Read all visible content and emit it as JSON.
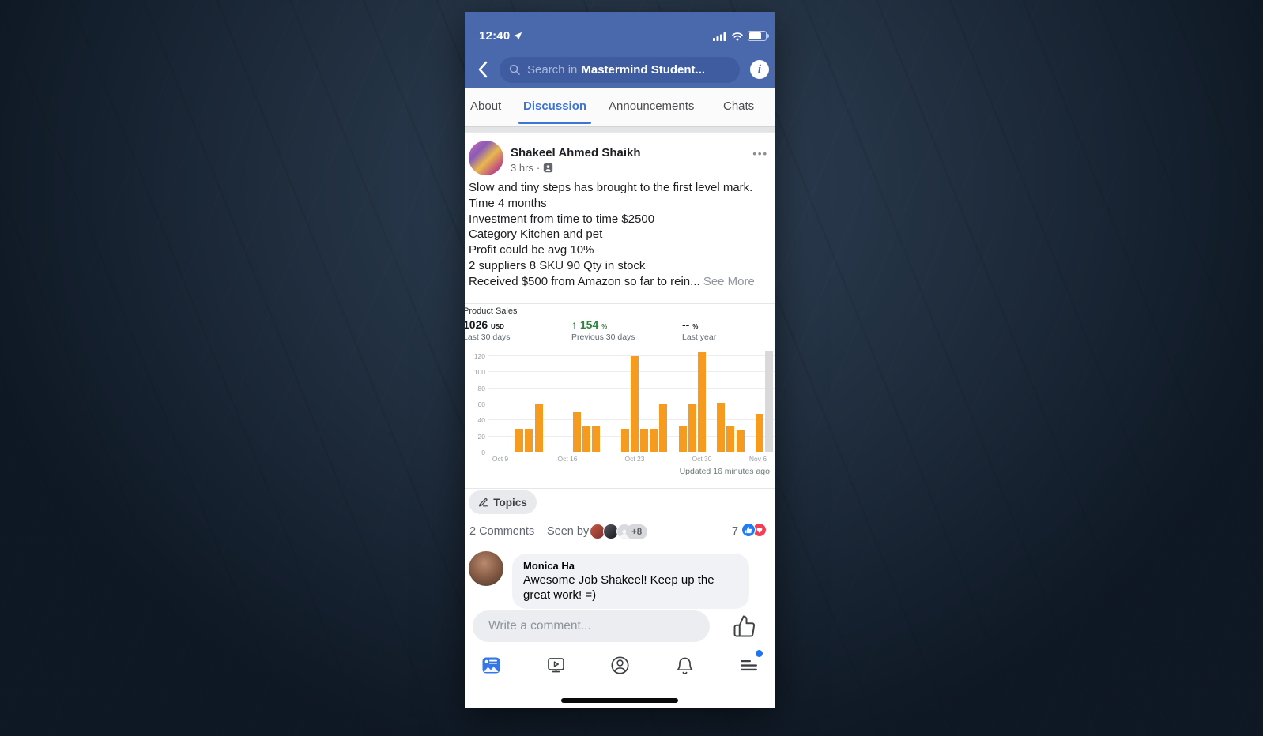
{
  "status_bar": {
    "time": "12:40"
  },
  "header": {
    "search_prefix": "Search in",
    "search_group": "Mastermind Student..."
  },
  "tabs": [
    {
      "label": "About"
    },
    {
      "label": "Discussion"
    },
    {
      "label": "Announcements"
    },
    {
      "label": "Chats"
    }
  ],
  "active_tab": "Discussion",
  "post": {
    "author": "Shakeel Ahmed Shaikh",
    "timestamp": "3 hrs",
    "meta_separator": "·",
    "text_lines": [
      "Slow and tiny steps has brought to the first level mark.",
      "Time 4 months",
      "Investment from time to time $2500",
      "Category Kitchen and pet",
      "Profit could be avg 10%",
      "2 suppliers 8 SKU 90 Qty in stock",
      "Received $500 from Amazon so far to rein..."
    ],
    "see_more_label": "See More"
  },
  "chart_data": {
    "type": "bar",
    "title": "Product Sales",
    "metrics": [
      {
        "value": "1026",
        "unit": "USD",
        "label": "Last 30 days"
      },
      {
        "value": "154",
        "unit": "%",
        "label": "Previous 30 days",
        "trend": "up",
        "trend_glyph": "↑"
      },
      {
        "value": "--",
        "unit": "%",
        "label": "Last year"
      }
    ],
    "x_ticks": [
      "Oct 9",
      "Oct 16",
      "Oct 23",
      "Oct 30",
      "Nov 6"
    ],
    "y_ticks": [
      0,
      20,
      40,
      60,
      80,
      100,
      120
    ],
    "ylim": [
      0,
      132
    ],
    "days_start": "Oct 9",
    "days_span": 29,
    "grid": true,
    "legend": false,
    "bar_color": "#F59B20",
    "highlight_color": "#D9D9D9",
    "bars": [
      {
        "date": "Oct 11",
        "day": 2,
        "value": 30
      },
      {
        "date": "Oct 12",
        "day": 3,
        "value": 30
      },
      {
        "date": "Oct 13",
        "day": 4,
        "value": 60
      },
      {
        "date": "Oct 17",
        "day": 8,
        "value": 50
      },
      {
        "date": "Oct 18",
        "day": 9,
        "value": 32
      },
      {
        "date": "Oct 19",
        "day": 10,
        "value": 32
      },
      {
        "date": "Oct 22",
        "day": 13,
        "value": 30
      },
      {
        "date": "Oct 23",
        "day": 14,
        "value": 120
      },
      {
        "date": "Oct 24",
        "day": 15,
        "value": 30
      },
      {
        "date": "Oct 25",
        "day": 16,
        "value": 30
      },
      {
        "date": "Oct 26",
        "day": 17,
        "value": 60
      },
      {
        "date": "Oct 28",
        "day": 19,
        "value": 32
      },
      {
        "date": "Oct 29",
        "day": 20,
        "value": 60
      },
      {
        "date": "Oct 30",
        "day": 21,
        "value": 125
      },
      {
        "date": "Nov 1",
        "day": 23,
        "value": 62
      },
      {
        "date": "Nov 2",
        "day": 24,
        "value": 32
      },
      {
        "date": "Nov 3",
        "day": 25,
        "value": 28
      },
      {
        "date": "Nov 5",
        "day": 27,
        "value": 48
      },
      {
        "date": "Nov 6",
        "day": 28,
        "value": 126,
        "highlight": true
      }
    ],
    "updated": "Updated 16 minutes ago"
  },
  "topics": {
    "label": "Topics"
  },
  "engagement": {
    "comments_label": "2 Comments",
    "seen_by_label": "Seen by",
    "seen_more": "+8",
    "reaction_count": "7"
  },
  "comment": {
    "author": "Monica Ha",
    "text": "Awesome Job Shakeel! Keep up the great work! =)"
  },
  "composer": {
    "placeholder": "Write a comment..."
  },
  "bottom_nav": {
    "items": [
      {
        "name": "news-feed",
        "active": true
      },
      {
        "name": "watch",
        "active": false
      },
      {
        "name": "profile",
        "active": false
      },
      {
        "name": "notifications",
        "active": false
      },
      {
        "name": "menu",
        "active": false,
        "badge_dot": true
      }
    ]
  },
  "colors": {
    "header_blue": "#4A68AC",
    "accent_blue": "#3B75D6",
    "like_blue": "#1F7CF5",
    "love_red": "#F33E58",
    "trend_green": "#2F8540"
  }
}
